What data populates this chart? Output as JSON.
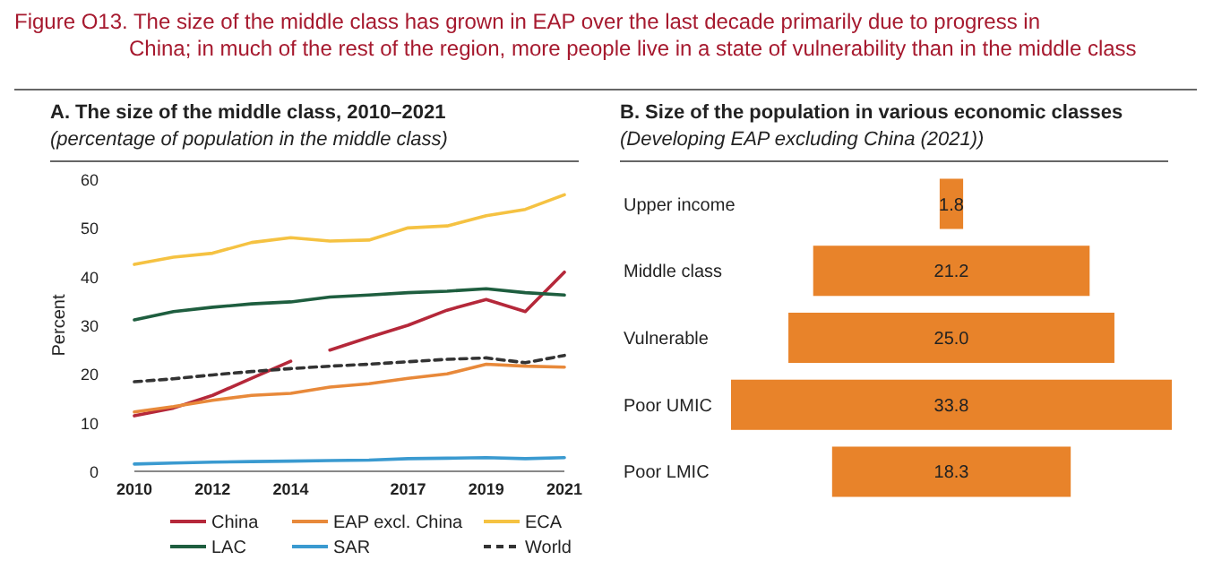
{
  "chart_data": [
    {
      "type": "line",
      "title": "A. The size of the middle class, 2010–2021",
      "subtitle": "(percentage of population in the middle class)",
      "annotations": [
        "Figure O13. The size of the middle class has grown in EAP over the last decade primarily due to progress in China; in much of the rest of the region, more people live in a state of vulnerability than in the middle class"
      ],
      "ylabel": "Percent",
      "x": [
        2010,
        2011,
        2012,
        2013,
        2014,
        2015,
        2016,
        2017,
        2018,
        2019,
        2020,
        2021
      ],
      "xlim": [
        2010,
        2021
      ],
      "xticks": [
        2010,
        2012,
        2014,
        2017,
        2019,
        2021
      ],
      "ylim": [
        0,
        60
      ],
      "yticks": [
        0,
        10,
        20,
        30,
        40,
        50,
        60
      ],
      "grid": false,
      "legend": "bottom",
      "series": [
        {
          "name": "China",
          "color": "#b5283a",
          "x": [
            2010,
            2011,
            2012,
            2013,
            2014,
            2014.5,
            2015,
            2016,
            2017,
            2018,
            2019,
            2020,
            2021
          ],
          "values": [
            11.4,
            13,
            15.6,
            19.1,
            22.6,
            null,
            24.9,
            27.5,
            30,
            33.1,
            35.3,
            32.8,
            40.9
          ]
        },
        {
          "name": "EAP excl. China",
          "color": "#e8893a",
          "values": [
            12.2,
            13.3,
            14.6,
            15.6,
            16,
            17.3,
            18,
            19.1,
            20,
            22,
            21.6,
            21.4
          ]
        },
        {
          "name": "ECA",
          "color": "#f5c242",
          "values": [
            42.5,
            44,
            44.8,
            47,
            48,
            47.3,
            47.5,
            50,
            50.4,
            52.5,
            53.8,
            56.8
          ]
        },
        {
          "name": "LAC",
          "color": "#1e5e3f",
          "values": [
            31.1,
            32.8,
            33.7,
            34.4,
            34.8,
            35.8,
            36.2,
            36.7,
            37,
            37.5,
            36.7,
            36.2
          ]
        },
        {
          "name": "SAR",
          "color": "#3a9ad0",
          "values": [
            1.5,
            1.7,
            1.9,
            2,
            2.1,
            2.2,
            2.3,
            2.6,
            2.7,
            2.8,
            2.6,
            2.8
          ]
        },
        {
          "name": "World",
          "color": "#333333",
          "line_style": "dashed",
          "values": [
            18.4,
            19,
            19.8,
            20.5,
            21.1,
            21.6,
            22,
            22.5,
            23,
            23.3,
            22.3,
            23.8
          ]
        }
      ]
    },
    {
      "type": "other",
      "title": "B. Size of the population in various economic classes",
      "subtitle": "(Developing EAP excluding China (2021))",
      "categories": [
        "Upper income",
        "Middle class",
        "Vulnerable",
        "Poor UMIC",
        "Poor LMIC"
      ],
      "values": [
        1.8,
        21.2,
        25.0,
        33.8,
        18.3
      ],
      "value_labels": [
        "1.8",
        "21.2",
        "25.0",
        "33.8",
        "18.3"
      ],
      "color": "#e8832a"
    }
  ]
}
